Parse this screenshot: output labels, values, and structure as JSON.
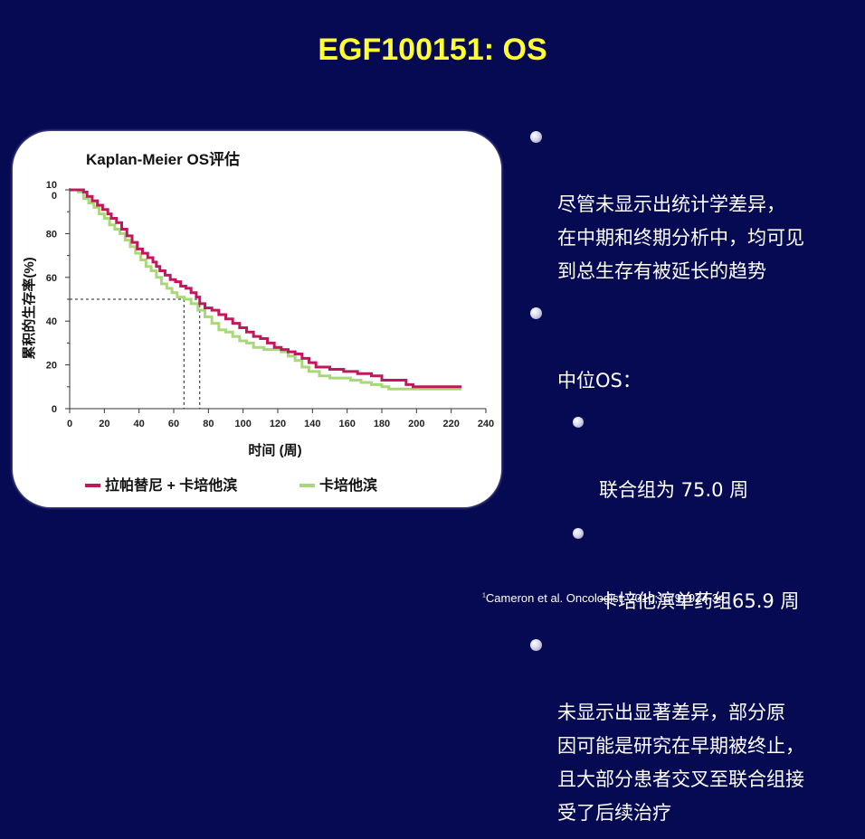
{
  "slide_title": "EGF100151: OS",
  "chart_data": {
    "type": "line",
    "subtype": "kaplan-meier-step",
    "title": "Kaplan-Meier OS评估",
    "xlabel": "时间 (周)",
    "ylabel": "累积的生存率(%)",
    "xlim": [
      0,
      240
    ],
    "ylim": [
      0,
      100
    ],
    "xticks": [
      0,
      20,
      40,
      60,
      80,
      100,
      120,
      140,
      160,
      180,
      200,
      220,
      240
    ],
    "yticks": [
      0,
      20,
      40,
      60,
      80,
      100
    ],
    "ytick_labels": [
      "0",
      "20",
      "40",
      "60",
      "80",
      "10\n0"
    ],
    "grid": false,
    "legend_position": "bottom",
    "median_lines": {
      "y": 50,
      "x": [
        65.9,
        75.0
      ]
    },
    "series": [
      {
        "name": "拉帕替尼 + 卡培他滨",
        "color": "#c2185b",
        "points": [
          [
            0,
            100
          ],
          [
            5,
            100
          ],
          [
            8,
            99
          ],
          [
            10,
            97
          ],
          [
            13,
            95
          ],
          [
            16,
            93
          ],
          [
            19,
            91
          ],
          [
            22,
            89
          ],
          [
            24,
            87
          ],
          [
            27,
            85
          ],
          [
            30,
            82
          ],
          [
            33,
            79
          ],
          [
            36,
            76
          ],
          [
            39,
            73
          ],
          [
            42,
            71
          ],
          [
            45,
            69
          ],
          [
            48,
            67
          ],
          [
            50,
            65
          ],
          [
            52,
            63
          ],
          [
            55,
            61
          ],
          [
            58,
            59
          ],
          [
            61,
            58
          ],
          [
            64,
            56
          ],
          [
            67,
            55
          ],
          [
            70,
            53
          ],
          [
            73,
            51
          ],
          [
            75,
            48
          ],
          [
            78,
            46
          ],
          [
            82,
            45
          ],
          [
            86,
            43
          ],
          [
            90,
            41
          ],
          [
            94,
            39
          ],
          [
            98,
            37
          ],
          [
            102,
            35
          ],
          [
            106,
            33
          ],
          [
            110,
            32
          ],
          [
            114,
            30
          ],
          [
            118,
            28
          ],
          [
            122,
            27
          ],
          [
            126,
            26
          ],
          [
            130,
            25
          ],
          [
            134,
            23
          ],
          [
            138,
            21
          ],
          [
            142,
            19
          ],
          [
            150,
            18
          ],
          [
            158,
            17
          ],
          [
            166,
            16
          ],
          [
            174,
            15
          ],
          [
            180,
            13
          ],
          [
            186,
            13
          ],
          [
            194,
            11
          ],
          [
            198,
            10
          ],
          [
            206,
            10
          ],
          [
            226,
            10
          ]
        ]
      },
      {
        "name": "卡培他滨",
        "color": "#a8d878",
        "points": [
          [
            0,
            100
          ],
          [
            5,
            99
          ],
          [
            8,
            96
          ],
          [
            11,
            94
          ],
          [
            14,
            92
          ],
          [
            17,
            89
          ],
          [
            20,
            87
          ],
          [
            23,
            84
          ],
          [
            26,
            82
          ],
          [
            29,
            80
          ],
          [
            32,
            77
          ],
          [
            35,
            74
          ],
          [
            38,
            71
          ],
          [
            41,
            68
          ],
          [
            44,
            65
          ],
          [
            47,
            63
          ],
          [
            50,
            60
          ],
          [
            53,
            57
          ],
          [
            56,
            55
          ],
          [
            59,
            53
          ],
          [
            62,
            51
          ],
          [
            66,
            50
          ],
          [
            70,
            48
          ],
          [
            74,
            45
          ],
          [
            78,
            42
          ],
          [
            82,
            39
          ],
          [
            86,
            36
          ],
          [
            90,
            35
          ],
          [
            94,
            33
          ],
          [
            98,
            31
          ],
          [
            102,
            30
          ],
          [
            106,
            28
          ],
          [
            112,
            27
          ],
          [
            118,
            27
          ],
          [
            122,
            26
          ],
          [
            126,
            24
          ],
          [
            130,
            22
          ],
          [
            134,
            19
          ],
          [
            138,
            17
          ],
          [
            144,
            15
          ],
          [
            150,
            14
          ],
          [
            156,
            14
          ],
          [
            162,
            13
          ],
          [
            168,
            12
          ],
          [
            174,
            11
          ],
          [
            180,
            10
          ],
          [
            184,
            9
          ],
          [
            196,
            9
          ],
          [
            210,
            9
          ],
          [
            226,
            9
          ]
        ]
      }
    ]
  },
  "bullets": [
    {
      "text": " 尽管未显示出统计学差异，\n在中期和终期分析中，均可见\n到总生存有被延长的趋势",
      "level": 1
    },
    {
      "text": "中位OS：",
      "level": 1
    },
    {
      "text": "联合组为 75.0 周",
      "level": 2
    },
    {
      "text": "卡培他滨单药组65.9 周",
      "level": 2
    },
    {
      "text": " 未显示出显著差异，部分原\n因可能是研究在早期被终止，\n且大部分患者交叉至联合组接\n受了后续治疗",
      "level": 1
    }
  ],
  "reference": {
    "superscript": "1",
    "text": "Cameron et al. Oncologist. 2010;15(9):924-34."
  }
}
